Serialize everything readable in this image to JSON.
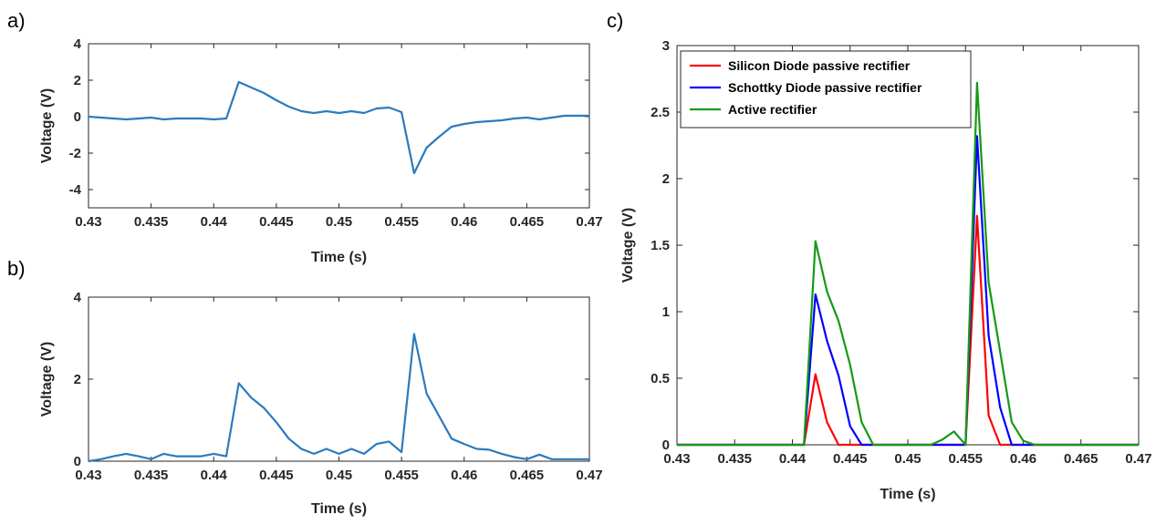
{
  "chart_data": [
    {
      "panel_label": "a)",
      "type": "line",
      "xlabel": "Time (s)",
      "ylabel": "Voltage (V)",
      "xlim": [
        0.43,
        0.47
      ],
      "ylim": [
        -5,
        4
      ],
      "xticks": [
        "0.43",
        "0.435",
        "0.44",
        "0.445",
        "0.45",
        "0.455",
        "0.46",
        "0.465",
        "0.47"
      ],
      "yticks": [
        "-4",
        "-2",
        "0",
        "2",
        "4"
      ],
      "ytick_values": [
        -4,
        -2,
        0,
        2,
        4
      ],
      "grid": false,
      "series": [
        {
          "color": "#2a7bbf",
          "x": [
            0.43,
            0.431,
            0.432,
            0.433,
            0.434,
            0.435,
            0.436,
            0.437,
            0.438,
            0.439,
            0.44,
            0.441,
            0.442,
            0.443,
            0.444,
            0.445,
            0.446,
            0.447,
            0.448,
            0.449,
            0.45,
            0.451,
            0.452,
            0.453,
            0.454,
            0.455,
            0.456,
            0.457,
            0.458,
            0.459,
            0.46,
            0.461,
            0.462,
            0.463,
            0.464,
            0.465,
            0.466,
            0.467,
            0.468,
            0.469,
            0.47
          ],
          "y": [
            0.0,
            -0.05,
            -0.1,
            -0.15,
            -0.1,
            -0.05,
            -0.15,
            -0.1,
            -0.1,
            -0.1,
            -0.15,
            -0.1,
            1.9,
            1.6,
            1.3,
            0.9,
            0.55,
            0.3,
            0.2,
            0.3,
            0.2,
            0.3,
            0.2,
            0.45,
            0.5,
            0.25,
            -3.1,
            -1.7,
            -1.1,
            -0.55,
            -0.4,
            -0.3,
            -0.25,
            -0.2,
            -0.1,
            -0.05,
            -0.15,
            -0.05,
            0.05,
            0.05,
            0.05
          ]
        }
      ]
    },
    {
      "panel_label": "b)",
      "type": "line",
      "xlabel": "Time (s)",
      "ylabel": "Voltage (V)",
      "xlim": [
        0.43,
        0.47
      ],
      "ylim": [
        0,
        4
      ],
      "xticks": [
        "0.43",
        "0.435",
        "0.44",
        "0.445",
        "0.45",
        "0.455",
        "0.46",
        "0.465",
        "0.47"
      ],
      "yticks": [
        "0",
        "2",
        "4"
      ],
      "ytick_values": [
        0,
        2,
        4
      ],
      "grid": false,
      "series": [
        {
          "color": "#2a7bbf",
          "x": [
            0.43,
            0.431,
            0.432,
            0.433,
            0.434,
            0.435,
            0.436,
            0.437,
            0.438,
            0.439,
            0.44,
            0.441,
            0.442,
            0.443,
            0.444,
            0.445,
            0.446,
            0.447,
            0.448,
            0.449,
            0.45,
            0.451,
            0.452,
            0.453,
            0.454,
            0.455,
            0.456,
            0.457,
            0.458,
            0.459,
            0.46,
            0.461,
            0.462,
            0.463,
            0.464,
            0.465,
            0.466,
            0.467,
            0.468,
            0.469,
            0.47
          ],
          "y": [
            0.0,
            0.05,
            0.12,
            0.18,
            0.12,
            0.05,
            0.18,
            0.12,
            0.12,
            0.12,
            0.18,
            0.12,
            1.9,
            1.55,
            1.3,
            0.95,
            0.55,
            0.3,
            0.18,
            0.3,
            0.18,
            0.3,
            0.18,
            0.42,
            0.48,
            0.22,
            3.1,
            1.65,
            1.1,
            0.55,
            0.42,
            0.3,
            0.28,
            0.18,
            0.1,
            0.05,
            0.16,
            0.05,
            0.05,
            0.05,
            0.05
          ]
        }
      ]
    },
    {
      "panel_label": "c)",
      "type": "line",
      "xlabel": "Time (s)",
      "ylabel": "Voltage (V)",
      "xlim": [
        0.43,
        0.47
      ],
      "ylim": [
        0,
        3
      ],
      "xticks": [
        "0.43",
        "0.435",
        "0.44",
        "0.445",
        "0.45",
        "0.455",
        "0.46",
        "0.465",
        "0.47"
      ],
      "yticks": [
        "0",
        "0.5",
        "1",
        "1.5",
        "2",
        "2.5",
        "3"
      ],
      "ytick_values": [
        0,
        0.5,
        1,
        1.5,
        2,
        2.5,
        3
      ],
      "grid": false,
      "legend": "top-left",
      "series": [
        {
          "name": "Silicon Diode passive rectifier",
          "color": "#ff0000",
          "x": [
            0.43,
            0.441,
            0.442,
            0.443,
            0.444,
            0.445,
            0.455,
            0.456,
            0.457,
            0.458,
            0.47
          ],
          "y": [
            0,
            0,
            0.53,
            0.17,
            0,
            0,
            0,
            1.72,
            0.22,
            0,
            0
          ]
        },
        {
          "name": "Schottky Diode passive rectifier",
          "color": "#0000ff",
          "x": [
            0.43,
            0.441,
            0.442,
            0.443,
            0.444,
            0.445,
            0.446,
            0.454,
            0.455,
            0.456,
            0.457,
            0.458,
            0.459,
            0.47
          ],
          "y": [
            0,
            0,
            1.13,
            0.78,
            0.52,
            0.14,
            0,
            0,
            0,
            2.32,
            0.82,
            0.28,
            0,
            0
          ]
        },
        {
          "name": "Active rectifier",
          "color": "#159a15",
          "x": [
            0.43,
            0.441,
            0.442,
            0.443,
            0.444,
            0.445,
            0.446,
            0.447,
            0.452,
            0.453,
            0.454,
            0.455,
            0.456,
            0.457,
            0.458,
            0.459,
            0.46,
            0.461,
            0.47
          ],
          "y": [
            0,
            0,
            1.53,
            1.15,
            0.93,
            0.6,
            0.17,
            0,
            0,
            0.04,
            0.1,
            0,
            2.72,
            1.22,
            0.7,
            0.17,
            0.03,
            0,
            0
          ]
        }
      ]
    }
  ]
}
